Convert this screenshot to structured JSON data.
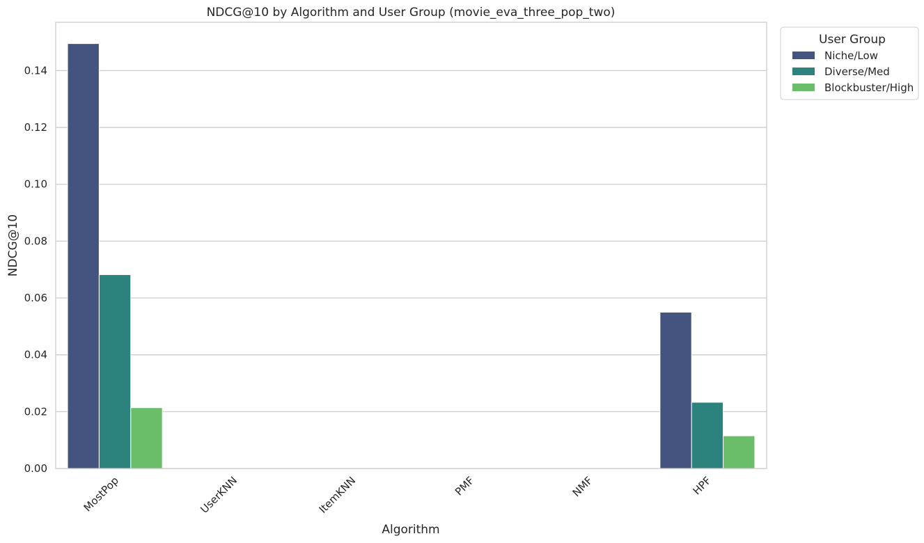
{
  "chart_data": {
    "type": "bar",
    "title": "NDCG@10 by Algorithm and User Group (movie_eva_three_pop_two)",
    "xlabel": "Algorithm",
    "ylabel": "NDCG@10",
    "categories": [
      "MostPop",
      "UserKNN",
      "ItemKNN",
      "PMF",
      "NMF",
      "HPF"
    ],
    "series": [
      {
        "name": "Niche/Low",
        "color": "#45537f",
        "values": [
          0.1495,
          0,
          0,
          0,
          0,
          0.055
        ]
      },
      {
        "name": "Diverse/Med",
        "color": "#2c837d",
        "values": [
          0.0682,
          0,
          0,
          0,
          0,
          0.0233
        ]
      },
      {
        "name": "Blockbuster/High",
        "color": "#6abe6a",
        "values": [
          0.0214,
          0,
          0,
          0,
          0,
          0.0115
        ]
      }
    ],
    "ylim": [
      0,
      0.157
    ],
    "yticks": [
      0.0,
      0.02,
      0.04,
      0.06,
      0.08,
      0.1,
      0.12,
      0.14
    ],
    "ytick_labels": [
      "0.00",
      "0.02",
      "0.04",
      "0.06",
      "0.08",
      "0.10",
      "0.12",
      "0.14"
    ],
    "grid": "horizontal",
    "legend": {
      "title": "User Group",
      "placement": "outside-top-right"
    }
  }
}
